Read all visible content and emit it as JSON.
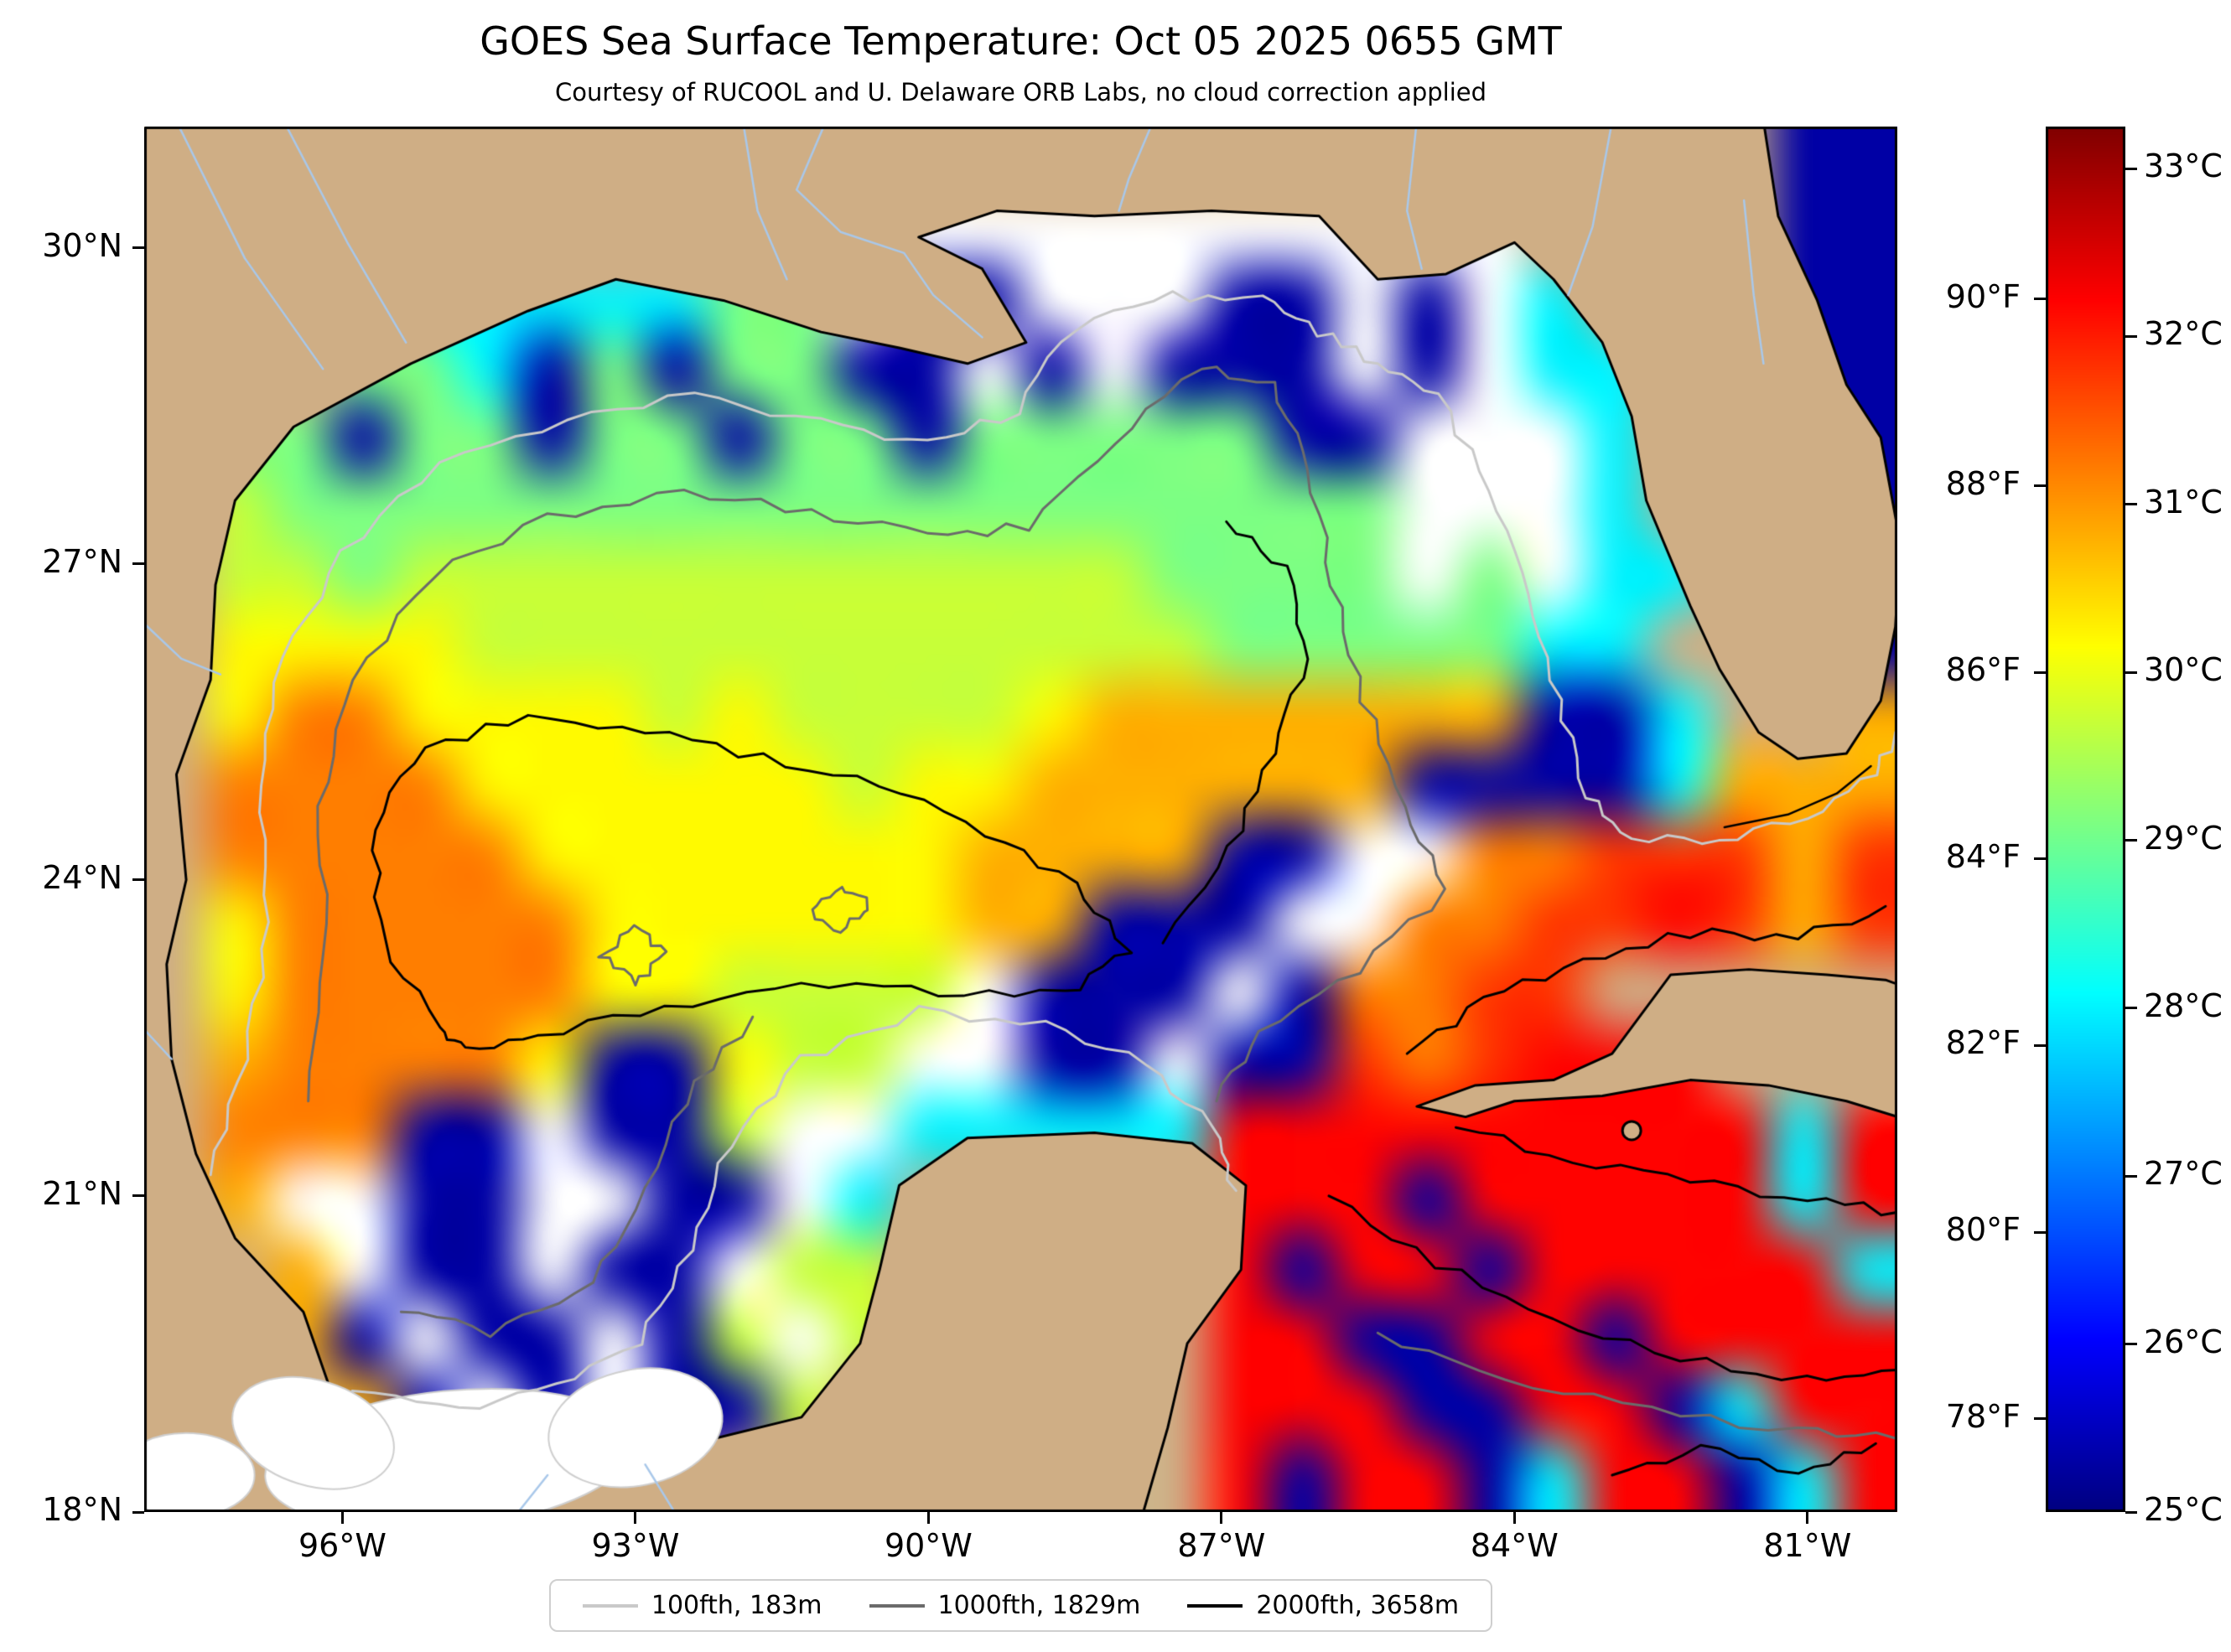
{
  "title": "GOES Sea Surface Temperature: Oct 05 2025 0655 GMT",
  "subtitle": "Courtesy of RUCOOL and U. Delaware ORB Labs, no cloud correction applied",
  "axes": {
    "lat_ticks": [
      {
        "label": "30°N",
        "value": 30
      },
      {
        "label": "27°N",
        "value": 27
      },
      {
        "label": "24°N",
        "value": 24
      },
      {
        "label": "21°N",
        "value": 21
      },
      {
        "label": "18°N",
        "value": 18
      }
    ],
    "lon_ticks": [
      {
        "label": "96°W",
        "value": -96
      },
      {
        "label": "93°W",
        "value": -93
      },
      {
        "label": "90°W",
        "value": -90
      },
      {
        "label": "87°W",
        "value": -87
      },
      {
        "label": "84°W",
        "value": -84
      },
      {
        "label": "81°W",
        "value": -81
      }
    ]
  },
  "colorbar": {
    "min_c": 25,
    "max_c": 33.25,
    "celsius_ticks": [
      {
        "label": "33°C",
        "value": 33
      },
      {
        "label": "32°C",
        "value": 32
      },
      {
        "label": "31°C",
        "value": 31
      },
      {
        "label": "30°C",
        "value": 30
      },
      {
        "label": "29°C",
        "value": 29
      },
      {
        "label": "28°C",
        "value": 28
      },
      {
        "label": "27°C",
        "value": 27
      },
      {
        "label": "26°C",
        "value": 26
      },
      {
        "label": "25°C",
        "value": 25
      }
    ],
    "fahrenheit_ticks": [
      {
        "label": "90°F",
        "value_f": 90
      },
      {
        "label": "88°F",
        "value_f": 88
      },
      {
        "label": "86°F",
        "value_f": 86
      },
      {
        "label": "84°F",
        "value_f": 84
      },
      {
        "label": "82°F",
        "value_f": 82
      },
      {
        "label": "80°F",
        "value_f": 80
      },
      {
        "label": "78°F",
        "value_f": 78
      }
    ]
  },
  "legend": {
    "entries": [
      {
        "label": "100fth, 183m",
        "color": "#c9c9c9"
      },
      {
        "label": "1000fth, 1829m",
        "color": "#6b6b6b"
      },
      {
        "label": "2000fth, 3658m",
        "color": "#000000"
      }
    ]
  },
  "colors": {
    "land": "#cfae85",
    "cloud_no_data": "#ffffff",
    "coastline": "#000000",
    "river": "#a9c8ea",
    "frame": "#000000",
    "background": "#ffffff"
  },
  "map_extent": {
    "lon_min": -98.03,
    "lon_max": -80.08,
    "lat_min": 18.0,
    "lat_max": 31.15
  },
  "chart_data": {
    "type": "heatmap",
    "title": "GOES Sea Surface Temperature: Oct 05 2025 0655 GMT",
    "value_units": "°C",
    "colormap": "jet",
    "colorbar_range_c": [
      25,
      33.25
    ],
    "colorbar_ticks_c": [
      25,
      26,
      27,
      28,
      29,
      30,
      31,
      32,
      33
    ],
    "colorbar_ticks_f": [
      78,
      80,
      82,
      84,
      86,
      88,
      90
    ],
    "lon_ticks_deg_w": [
      96,
      93,
      90,
      87,
      84,
      81
    ],
    "lat_ticks_deg_n": [
      18,
      21,
      24,
      27,
      30
    ],
    "token_legend": {
      "L": "land",
      "w": "cloud / no data"
    },
    "token_temps_c": {
      "b": 25.3,
      "B": 26.6,
      "c": 28.0,
      "g": 29.1,
      "y": 29.7,
      "Y": 30.2,
      "o": 30.8,
      "O": 31.2,
      "r": 31.8,
      "R": 32.2,
      "d": 33.0
    },
    "grid_cols": 28,
    "grid_rows": 20,
    "grid_lon_range": [
      -98.03,
      -80.08
    ],
    "grid_lat_range": [
      18.0,
      31.15
    ],
    "grid_rows_top_to_bottom": [
      "LLLLLLLLLLLLLLLLLLLLLLLLLLbb",
      "LLLLLLLLLLLLwwwwwwwwwwLLLLbb",
      "LLLLcccccggwbbwwwbbwbwcLLLbb",
      "LLLggcbgbggbbwbwbbbwbwccLLbb",
      "LggbggbggbggbgggggbbwwwcLLbb",
      "LyggggggggggggggggggwwwcLLLb",
      "LyygyyyyyyyyyyyyggggwgwccLLb",
      "LYYYYyyyyyyyyyyyygggggccLLLb",
      "LYOOYYYYyYyyyyYooooooobbcLLo",
      "LOOOOYYYYYYyYYoooooobbbbcooo",
      "LOOOOOYYYYYYYoooobbwwOOrrror",
      "LYOOOOOYYYYYYoobbbwwOOrrRror",
      "LYOOOOOYYyyyywbbbwbOOrrLLLLL",
      "LoOOOOYbbYyywwbbwbbrOrRRRLLL",
      "LOOObbwbbywwcccccRRRRRRRRRcR",
      "LowwbbwwbbwcLLLLLRRRbRRRRRcR",
      "LLowbbwbbwyyLLLLLRbRRbRRRRRc",
      "LLobwbbwbywyLLLLLRRbbRRbRRRR",
      "LLLobwbwbbyLLLLLLRRRbbRRbcRR",
      "LLLLLLLLLLLLLLLLLRbRRbcRRbcR"
    ],
    "bathymetry_contours": [
      {
        "depth_label": "100fth, 183m"
      },
      {
        "depth_label": "1000fth, 1829m"
      },
      {
        "depth_label": "2000fth, 3658m"
      }
    ]
  }
}
